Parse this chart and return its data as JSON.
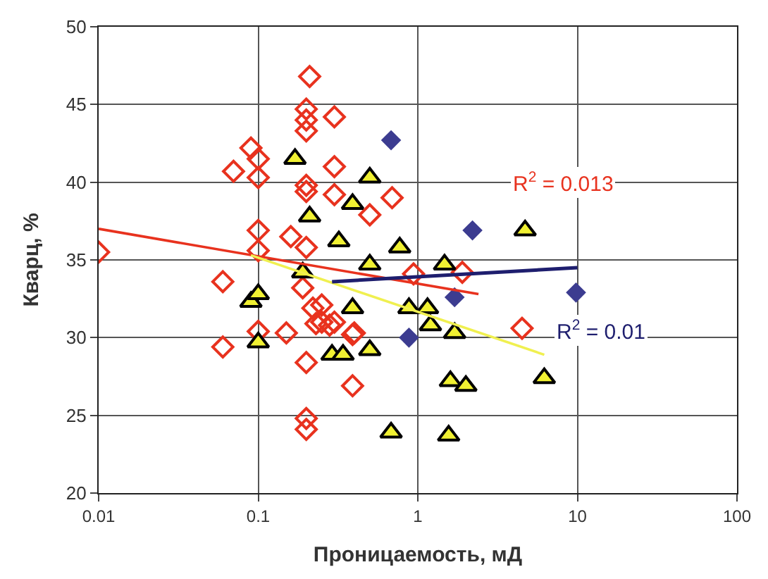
{
  "chart_data": {
    "type": "scatter",
    "xlabel": "Проницаемость, мД",
    "ylabel": "Кварц, %",
    "log": "x",
    "xlim": [
      0.01,
      100
    ],
    "ylim": [
      20,
      50
    ],
    "xticks": [
      0.01,
      0.1,
      1,
      10,
      100
    ],
    "yticks": [
      20,
      25,
      30,
      35,
      40,
      45,
      50
    ],
    "grid": true,
    "series": [
      {
        "marker": "diamond",
        "color": "#e8321e",
        "x": [
          0.01,
          0.21,
          0.2,
          0.2,
          0.2,
          0.09,
          0.1,
          0.07,
          0.1,
          0.2,
          0.2,
          0.1,
          0.16,
          0.1,
          0.2,
          0.06,
          0.06,
          0.1,
          0.15,
          0.2,
          0.2,
          0.2,
          0.19,
          0.22,
          0.25,
          0.3,
          0.3,
          0.3,
          0.69,
          0.5,
          0.94,
          1.9,
          4.5,
          0.39,
          0.28,
          0.4,
          0.25,
          0.23,
          0.3,
          0.39
        ],
        "values": [
          35.5,
          46.8,
          44.7,
          44,
          43.3,
          42.2,
          41.5,
          40.7,
          40.3,
          39.8,
          39.4,
          36.9,
          36.5,
          35.6,
          35.8,
          33.6,
          29.4,
          30.4,
          30.3,
          28.4,
          24.8,
          24.1,
          33.2,
          31.9,
          31,
          44.2,
          41,
          39.2,
          39,
          37.9,
          34.1,
          34.2,
          30.6,
          26.9,
          30.8,
          30.3,
          32.1,
          30.9,
          31,
          30.2
        ]
      },
      {
        "marker": "diamond",
        "color": "#3c3c90",
        "x": [
          0.68,
          2.2,
          1.7,
          0.88,
          9.8
        ],
        "values": [
          42.7,
          36.9,
          32.6,
          30,
          32.9
        ]
      },
      {
        "marker": "triangle",
        "color": "#f0f032",
        "x": [
          0.17,
          0.21,
          0.09,
          0.1,
          0.1,
          0.19,
          0.5,
          0.39,
          0.32,
          0.77,
          0.5,
          1.47,
          4.7,
          0.39,
          0.88,
          1.15,
          1.2,
          1.7,
          0.29,
          0.34,
          0.5,
          1.6,
          2.0,
          6.2,
          0.68,
          1.56
        ],
        "values": [
          41.5,
          37.8,
          32.3,
          32.8,
          29.7,
          34.2,
          40.3,
          38.6,
          36.2,
          35.8,
          34.7,
          34.7,
          36.9,
          31.9,
          31.9,
          31.9,
          30.8,
          30.3,
          28.9,
          28.9,
          29.2,
          27.2,
          26.9,
          27.4,
          23.9,
          23.7
        ]
      },
      {
        "type": "line",
        "marker": "none",
        "color": "#e8321e",
        "x": [
          0.01,
          2.4
        ],
        "values": [
          37,
          32.8
        ]
      },
      {
        "type": "line",
        "marker": "none",
        "color": "#f0f050",
        "x": [
          0.09,
          6.2
        ],
        "values": [
          35.3,
          28.9
        ]
      },
      {
        "type": "line",
        "marker": "none",
        "color": "#1e1e6e",
        "x": [
          0.29,
          10
        ],
        "values": [
          33.6,
          34.5
        ]
      }
    ],
    "annotations": [
      "R$^{2}$ = 0.013",
      "R$^{2}$ = 0.01"
    ]
  }
}
